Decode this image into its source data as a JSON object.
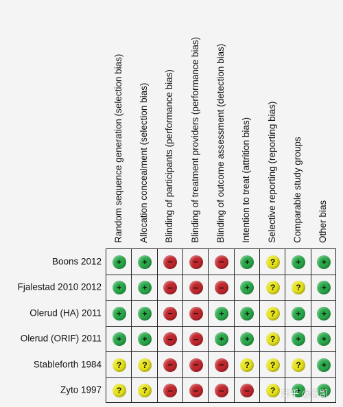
{
  "columns": [
    "Random sequence generation (selection bias)",
    "Allocation concealment (selection bias)",
    "Blinding of participants (performance bias)",
    "Blinding of treatment providers (performance bias)",
    "Blinding of outcome assessment (detection bias)",
    "Intention to treat (attrition bias)",
    "Selective reporting (reporting bias)",
    "Comparable study groups",
    "Other bias"
  ],
  "rows": [
    {
      "study": "Boons 2012",
      "judgements": [
        "low",
        "low",
        "high",
        "high",
        "high",
        "low",
        "unclear",
        "low",
        "low"
      ]
    },
    {
      "study": "Fjalestad 2010 2012",
      "judgements": [
        "low",
        "low",
        "high",
        "high",
        "high",
        "low",
        "unclear",
        "unclear",
        "low"
      ]
    },
    {
      "study": "Olerud (HA) 2011",
      "judgements": [
        "low",
        "low",
        "high",
        "high",
        "low",
        "low",
        "unclear",
        "low",
        "low"
      ]
    },
    {
      "study": "Olerud (ORIF) 2011",
      "judgements": [
        "low",
        "low",
        "high",
        "high",
        "low",
        "low",
        "unclear",
        "low",
        "low"
      ]
    },
    {
      "study": "Stableforth 1984",
      "judgements": [
        "unclear",
        "unclear",
        "high",
        "high",
        "high",
        "unclear",
        "unclear",
        "unclear",
        "low"
      ]
    },
    {
      "study": "Zyto 1997",
      "judgements": [
        "unclear",
        "unclear",
        "high",
        "high",
        "high",
        "high",
        "unclear",
        "low",
        "low"
      ]
    }
  ],
  "legend_symbols": {
    "low": "+",
    "high": "−",
    "unclear": "?"
  },
  "colors": {
    "low": "#2aa84a",
    "high": "#c0272d",
    "unclear": "#e6e31c",
    "grid": "#222222",
    "background": "#f4f4f4"
  },
  "watermark": "知乎 @曹凯"
}
